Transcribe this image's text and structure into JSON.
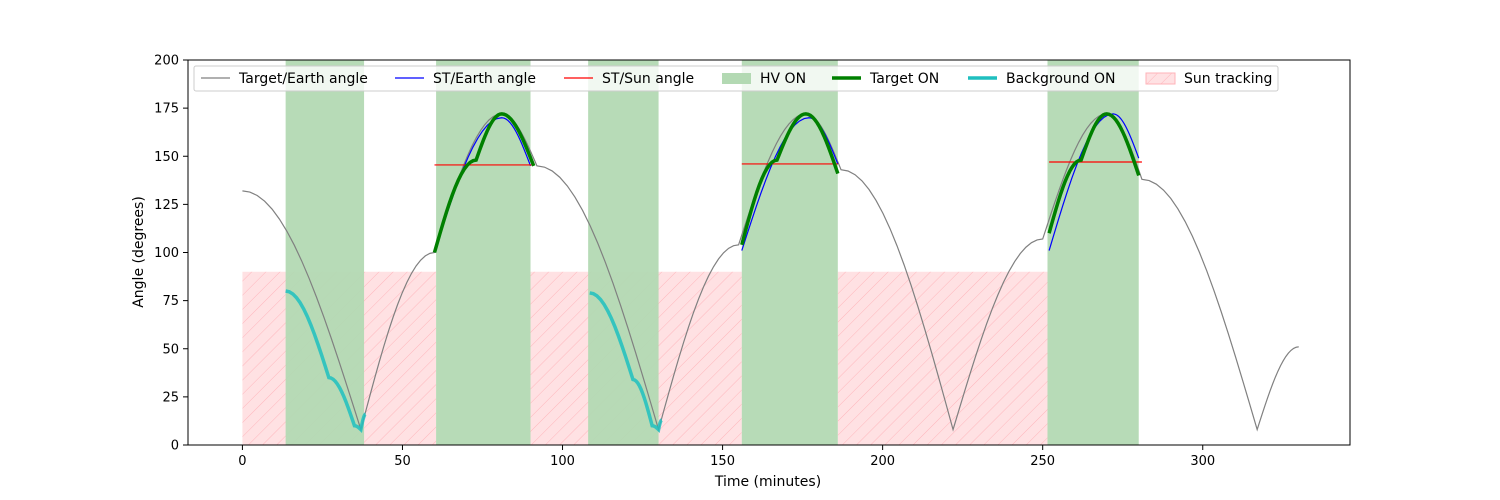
{
  "chart_data": {
    "type": "line",
    "xlabel": "Time (minutes)",
    "ylabel": "Angle (degrees)",
    "xlim": [
      -17,
      346
    ],
    "ylim": [
      0,
      200
    ],
    "x_ticks": [
      0,
      50,
      100,
      150,
      200,
      250,
      300
    ],
    "y_ticks": [
      0,
      25,
      50,
      75,
      100,
      125,
      150,
      175,
      200
    ],
    "grid": false,
    "legend_position": "top",
    "colors": {
      "target_earth": "#808080",
      "st_earth": "#0000ff",
      "st_sun": "#ff0000",
      "hv_on": "#b3d9b3",
      "target_on": "#008000",
      "background_on": "#1fbfbf",
      "sun_tracking": "#ffb3b8"
    },
    "legend": [
      {
        "key": "target_earth",
        "label": "Target/Earth angle",
        "kind": "line"
      },
      {
        "key": "st_earth",
        "label": "ST/Earth angle",
        "kind": "line"
      },
      {
        "key": "st_sun",
        "label": "ST/Sun angle",
        "kind": "line"
      },
      {
        "key": "hv_on",
        "label": "HV ON",
        "kind": "patch"
      },
      {
        "key": "target_on",
        "label": "Target ON",
        "kind": "thick"
      },
      {
        "key": "background_on",
        "label": "Background ON",
        "kind": "thick"
      },
      {
        "key": "sun_tracking",
        "label": "Sun tracking",
        "kind": "hatch"
      }
    ],
    "series": {
      "target_earth": {
        "x": [
          0,
          37,
          60,
          81,
          92,
          130,
          155,
          176,
          187,
          222,
          250,
          270,
          281,
          317,
          330
        ],
        "y": [
          132,
          8,
          100,
          172,
          145,
          8,
          104,
          172,
          143,
          8,
          107,
          172,
          138,
          8,
          51
        ]
      },
      "st_earth": [
        {
          "x": [
            60,
            81,
            90
          ],
          "y": [
            100,
            170,
            145
          ]
        },
        {
          "x": [
            156,
            177,
            186
          ],
          "y": [
            101,
            170,
            146
          ]
        },
        {
          "x": [
            252,
            272,
            280
          ],
          "y": [
            101,
            172,
            149
          ]
        }
      ],
      "st_sun": [
        {
          "x": [
            60,
            91
          ],
          "y": [
            145.5,
            145.5
          ]
        },
        {
          "x": [
            156,
            186
          ],
          "y": [
            146,
            146
          ]
        },
        {
          "x": [
            252,
            281
          ],
          "y": [
            147,
            147
          ]
        }
      ],
      "target_on": [
        {
          "x": [
            60,
            73,
            81,
            91
          ],
          "y": [
            100,
            148,
            172,
            145
          ]
        },
        {
          "x": [
            156,
            167,
            176,
            186
          ],
          "y": [
            104,
            148,
            172,
            141
          ]
        },
        {
          "x": [
            252,
            262,
            270,
            280
          ],
          "y": [
            110,
            148,
            172,
            140
          ]
        }
      ],
      "background_on": [
        {
          "x": [
            13.5,
            27,
            35,
            37,
            38.5
          ],
          "y": [
            80,
            35,
            10,
            8,
            16
          ]
        },
        {
          "x": [
            108.5,
            122,
            128,
            130,
            131
          ],
          "y": [
            79,
            34,
            10,
            8,
            13
          ]
        }
      ],
      "hv_on": [
        [
          13.5,
          38
        ],
        [
          60.5,
          90
        ],
        [
          108,
          130
        ],
        [
          156,
          186
        ],
        [
          251.5,
          280
        ]
      ],
      "sun_tracking": [
        [
          0,
          60.5,
          90
        ],
        [
          90,
          156,
          90
        ],
        [
          186,
          251.5,
          90
        ]
      ]
    }
  }
}
